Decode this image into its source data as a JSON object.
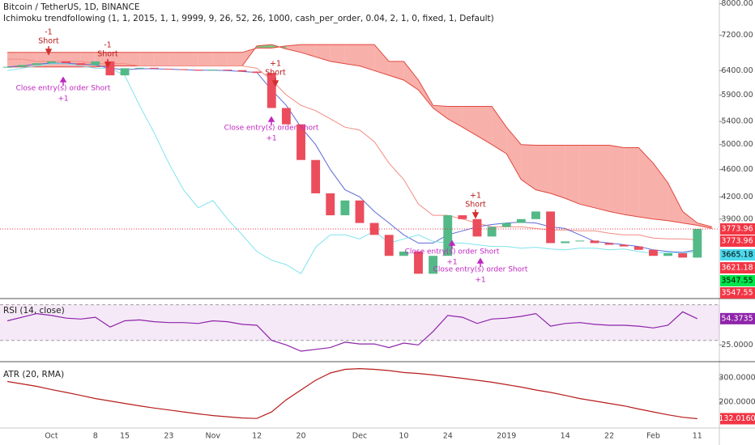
{
  "chart_data": [
    {
      "type": "candlestick",
      "title": "Bitcoin / TetherUS, 1D, BINANCE",
      "subtitle": "Ichimoku trendfollowing (1, 1, 2015, 1, 1, 9999, 9, 26, 52, 26, 1000, cash_per_order, 0.04, 2, 1, 0, fixed, 1, Default)",
      "categories": [
        null,
        null,
        null,
        "Oct",
        null,
        null,
        "8",
        null,
        "15",
        null,
        null,
        "23",
        null,
        null,
        "Nov",
        null,
        null,
        "12",
        null,
        null,
        "20",
        null,
        null,
        null,
        "Dec",
        null,
        null,
        "10",
        null,
        null,
        "24",
        null,
        null,
        null,
        "2019",
        null,
        null,
        null,
        "14",
        null,
        null,
        "22",
        null,
        null,
        "Feb",
        null,
        null,
        "11",
        null
      ],
      "values": [
        6480,
        6520,
        6560,
        6600,
        6560,
        6520,
        6600,
        6300,
        6450,
        6460,
        6440,
        6430,
        6420,
        6400,
        6420,
        6410,
        6380,
        6350,
        5650,
        5350,
        4750,
        4250,
        3950,
        4150,
        3850,
        3700,
        3450,
        3500,
        3250,
        3450,
        3950,
        3900,
        3680,
        3800,
        3850,
        3900,
        4000,
        3600,
        3620,
        3630,
        3600,
        3580,
        3560,
        3520,
        3450,
        3480,
        3430,
        3773.96,
        null
      ],
      "up_color": "#53b987",
      "down_color": "#eb4d5c",
      "lines": [
        {
          "color": "#f28b82",
          "values": [
            6650,
            6650,
            6600,
            6600,
            6600,
            6600,
            6550,
            6550,
            6550,
            6500,
            6500,
            6500,
            6500,
            6500,
            6500,
            6500,
            6500,
            6450,
            6200,
            5900,
            5700,
            5600,
            5450,
            5300,
            5250,
            5050,
            4700,
            4450,
            4100,
            3950,
            3950,
            3900,
            3850,
            3800,
            3800,
            3800,
            3780,
            3760,
            3760,
            3750,
            3750,
            3720,
            3700,
            3700,
            3660,
            3650,
            3650,
            3640,
            null
          ]
        },
        {
          "color": "#5b6bd6",
          "values": [
            6480,
            6500,
            6540,
            6560,
            6560,
            6540,
            6520,
            6450,
            6420,
            6440,
            6440,
            6430,
            6420,
            6410,
            6410,
            6400,
            6380,
            6360,
            6000,
            5700,
            5300,
            5000,
            4600,
            4300,
            4200,
            4000,
            3850,
            3700,
            3600,
            3600,
            3700,
            3750,
            3800,
            3830,
            3850,
            3860,
            3850,
            3800,
            3780,
            3700,
            3620,
            3600,
            3580,
            3560,
            3520,
            3500,
            3490,
            3520,
            null
          ]
        },
        {
          "color": "#7fe3ee",
          "values": [
            6400,
            6450,
            6500,
            6550,
            6550,
            6500,
            6450,
            6450,
            6300,
            5700,
            5200,
            4700,
            4300,
            4050,
            4150,
            3900,
            3700,
            3500,
            3400,
            3350,
            3250,
            3550,
            3700,
            3700,
            3650,
            3750,
            3600,
            3650,
            3700,
            3620,
            3600,
            3600,
            3580,
            3560,
            3560,
            3540,
            3550,
            3530,
            3520,
            3540,
            3540,
            3520,
            3530,
            3500,
            3480,
            3490,
            3480,
            3500,
            null
          ]
        }
      ],
      "cloud": {
        "up_color": "#66bb6a",
        "down_color": "#f7a29c",
        "edge_color": "#e0483e",
        "span_a": [
          6480,
          6480,
          6480,
          6480,
          6480,
          6480,
          6480,
          6500,
          6500,
          6500,
          6500,
          6500,
          6500,
          6500,
          6500,
          6500,
          6500,
          6950,
          6980,
          6880,
          6800,
          6700,
          6600,
          6550,
          6500,
          6400,
          6300,
          6200,
          6000,
          5650,
          5450,
          5300,
          5150,
          5000,
          4850,
          4450,
          4300,
          4250,
          4180,
          4100,
          4050,
          4000,
          3960,
          3930,
          3900,
          3880,
          3850,
          3820,
          3780
        ],
        "span_b": [
          6800,
          6800,
          6800,
          6800,
          6800,
          6800,
          6800,
          6800,
          6800,
          6800,
          6800,
          6800,
          6800,
          6800,
          6800,
          6800,
          6800,
          6900,
          6900,
          6950,
          6980,
          6980,
          6980,
          6980,
          6980,
          6980,
          6600,
          6600,
          6200,
          5700,
          5680,
          5680,
          5680,
          5680,
          5300,
          5000,
          4990,
          4990,
          4990,
          4990,
          4990,
          4990,
          4950,
          4950,
          4700,
          4400,
          4000,
          3850,
          3800
        ]
      },
      "log": true,
      "ylim": [
        3000,
        8100
      ],
      "yticks": [
        {
          "value": 8000,
          "label": "8000.00"
        },
        {
          "value": 7200,
          "label": "7200.00"
        },
        {
          "value": 6400,
          "label": "6400.00"
        },
        {
          "value": 5900,
          "label": "5900.00"
        },
        {
          "value": 5400,
          "label": "5400.00"
        },
        {
          "value": 5000,
          "label": "5000.00"
        },
        {
          "value": 4600,
          "label": "4600.00"
        },
        {
          "value": 4200,
          "label": "4200.00"
        },
        {
          "value": 3900,
          "label": "3900.00"
        }
      ],
      "markers": [
        {
          "value": 3773.96,
          "color": "#f23645",
          "text_color": "#ffffff"
        },
        {
          "value": 3773.96,
          "color": "#f23645",
          "text_color": "#ffffff"
        },
        {
          "value": 3665.18,
          "color": "#4dd9ec",
          "text_color": "#000000"
        },
        {
          "value": 3621.18,
          "color": "#f23645",
          "text_color": "#ffffff"
        },
        {
          "value": 3547.55,
          "color": "#00e64d",
          "text_color": "#000000"
        },
        {
          "value": 3547.55,
          "color": "#f23645",
          "text_color": "#ffffff"
        }
      ],
      "signals": [
        {
          "qty": -1,
          "text": "Short"
        },
        {
          "qty": -1,
          "text": "Short"
        },
        {
          "qty": {
            "value": 1,
            "label": "+1"
          },
          "text": "Short"
        },
        {
          "qty": {
            "value": 1,
            "label": "+1"
          },
          "text": "Short"
        }
      ],
      "exits": [
        {
          "text": "Close entry(s) order Short",
          "qty": {
            "value": 1,
            "label": "+1"
          }
        },
        {
          "text": "Close entry(s) order Short",
          "qty": {
            "value": 1,
            "label": "+1"
          }
        },
        {
          "text": "Close entry(s) order Short",
          "qty": {
            "value": 1,
            "label": "+1"
          }
        },
        {
          "text": "Close entry(s) order Short",
          "qty": {
            "value": 1,
            "label": "+1"
          }
        }
      ]
    },
    {
      "type": "line",
      "title": "RSI (14, close)",
      "color": "#8e24aa",
      "band": [
        30,
        70
      ],
      "band_color": "#9c27b0",
      "values": [
        52,
        56,
        60,
        58,
        55,
        54,
        56,
        45,
        52,
        53,
        51,
        50,
        50,
        49,
        52,
        51,
        48,
        47,
        30,
        25,
        18,
        20,
        22,
        28,
        26,
        26,
        22,
        27,
        25,
        40,
        58,
        56,
        49,
        54,
        55,
        57,
        60,
        46,
        49,
        50,
        48,
        47,
        47,
        46,
        44,
        47,
        62,
        54.3735,
        null
      ],
      "ylim": [
        8,
        76
      ],
      "yticks": [
        {
          "value": 25,
          "label": "25.0000"
        }
      ],
      "markers": [
        {
          "value": 54.3735,
          "color": "#8e24aa",
          "text_color": "#ffffff"
        }
      ]
    },
    {
      "type": "line",
      "title": "ATR (20, RMA)",
      "color": "#b71c1c",
      "values": [
        285,
        275,
        265,
        252,
        240,
        228,
        215,
        205,
        195,
        185,
        176,
        168,
        160,
        152,
        145,
        140,
        135,
        133,
        160,
        210,
        250,
        290,
        320,
        335,
        338,
        335,
        330,
        322,
        318,
        312,
        305,
        298,
        290,
        282,
        272,
        262,
        250,
        240,
        228,
        215,
        205,
        195,
        185,
        172,
        160,
        148,
        138,
        132.016,
        null
      ],
      "ylim": [
        97,
        360
      ],
      "yticks": [
        {
          "value": 300,
          "label": "300.0000"
        },
        {
          "value": 200,
          "label": "200.0000"
        }
      ],
      "markers": [
        {
          "value": 132.016,
          "label": "132.0160",
          "color": "#f23645",
          "text_color": "#ffffff"
        }
      ]
    }
  ]
}
